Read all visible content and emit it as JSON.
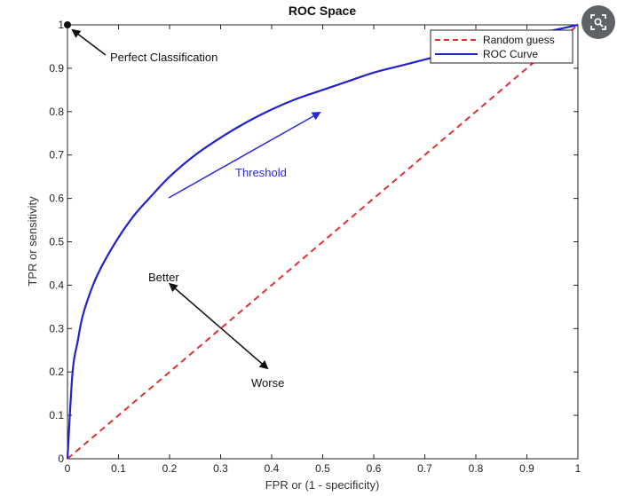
{
  "chart_data": {
    "type": "line",
    "title": "ROC Space",
    "xlabel": "FPR or (1 - specificity)",
    "ylabel": "TPR or sensitivity",
    "xlim": [
      0,
      1
    ],
    "ylim": [
      0,
      1
    ],
    "xticks": [
      "0",
      "0.1",
      "0.2",
      "0.3",
      "0.4",
      "0.5",
      "0.6",
      "0.7",
      "0.8",
      "0.9",
      "1"
    ],
    "yticks": [
      "0",
      "0.1",
      "0.2",
      "0.3",
      "0.4",
      "0.5",
      "0.6",
      "0.7",
      "0.8",
      "0.9",
      "1"
    ],
    "grid": false,
    "legend_position": "top-right",
    "series": [
      {
        "name": "Random guess",
        "style": "dashed",
        "color": "#e03030",
        "x": [
          0,
          1
        ],
        "y": [
          0,
          1
        ]
      },
      {
        "name": "ROC Curve",
        "style": "solid",
        "color": "#2222cc",
        "x": [
          0,
          0.01,
          0.02,
          0.03,
          0.05,
          0.07,
          0.1,
          0.13,
          0.16,
          0.2,
          0.25,
          0.3,
          0.35,
          0.4,
          0.45,
          0.5,
          0.55,
          0.6,
          0.65,
          0.7,
          0.75,
          0.8,
          0.85,
          0.9,
          0.95,
          1
        ],
        "y": [
          0,
          0.2,
          0.27,
          0.33,
          0.4,
          0.45,
          0.51,
          0.56,
          0.6,
          0.65,
          0.7,
          0.74,
          0.775,
          0.805,
          0.83,
          0.85,
          0.87,
          0.89,
          0.905,
          0.92,
          0.935,
          0.95,
          0.962,
          0.975,
          0.987,
          1
        ]
      }
    ],
    "points": [
      {
        "x": 0,
        "y": 1,
        "label": "Perfect Classification"
      }
    ],
    "annotations": [
      {
        "text": "Perfect Classification",
        "color": "#111111"
      },
      {
        "text": "Threshold",
        "color": "#2a2ad8"
      },
      {
        "text": "Better",
        "color": "#111111"
      },
      {
        "text": "Worse",
        "color": "#111111"
      }
    ]
  },
  "ui": {
    "lens_button_icon": "visual-search-icon"
  }
}
